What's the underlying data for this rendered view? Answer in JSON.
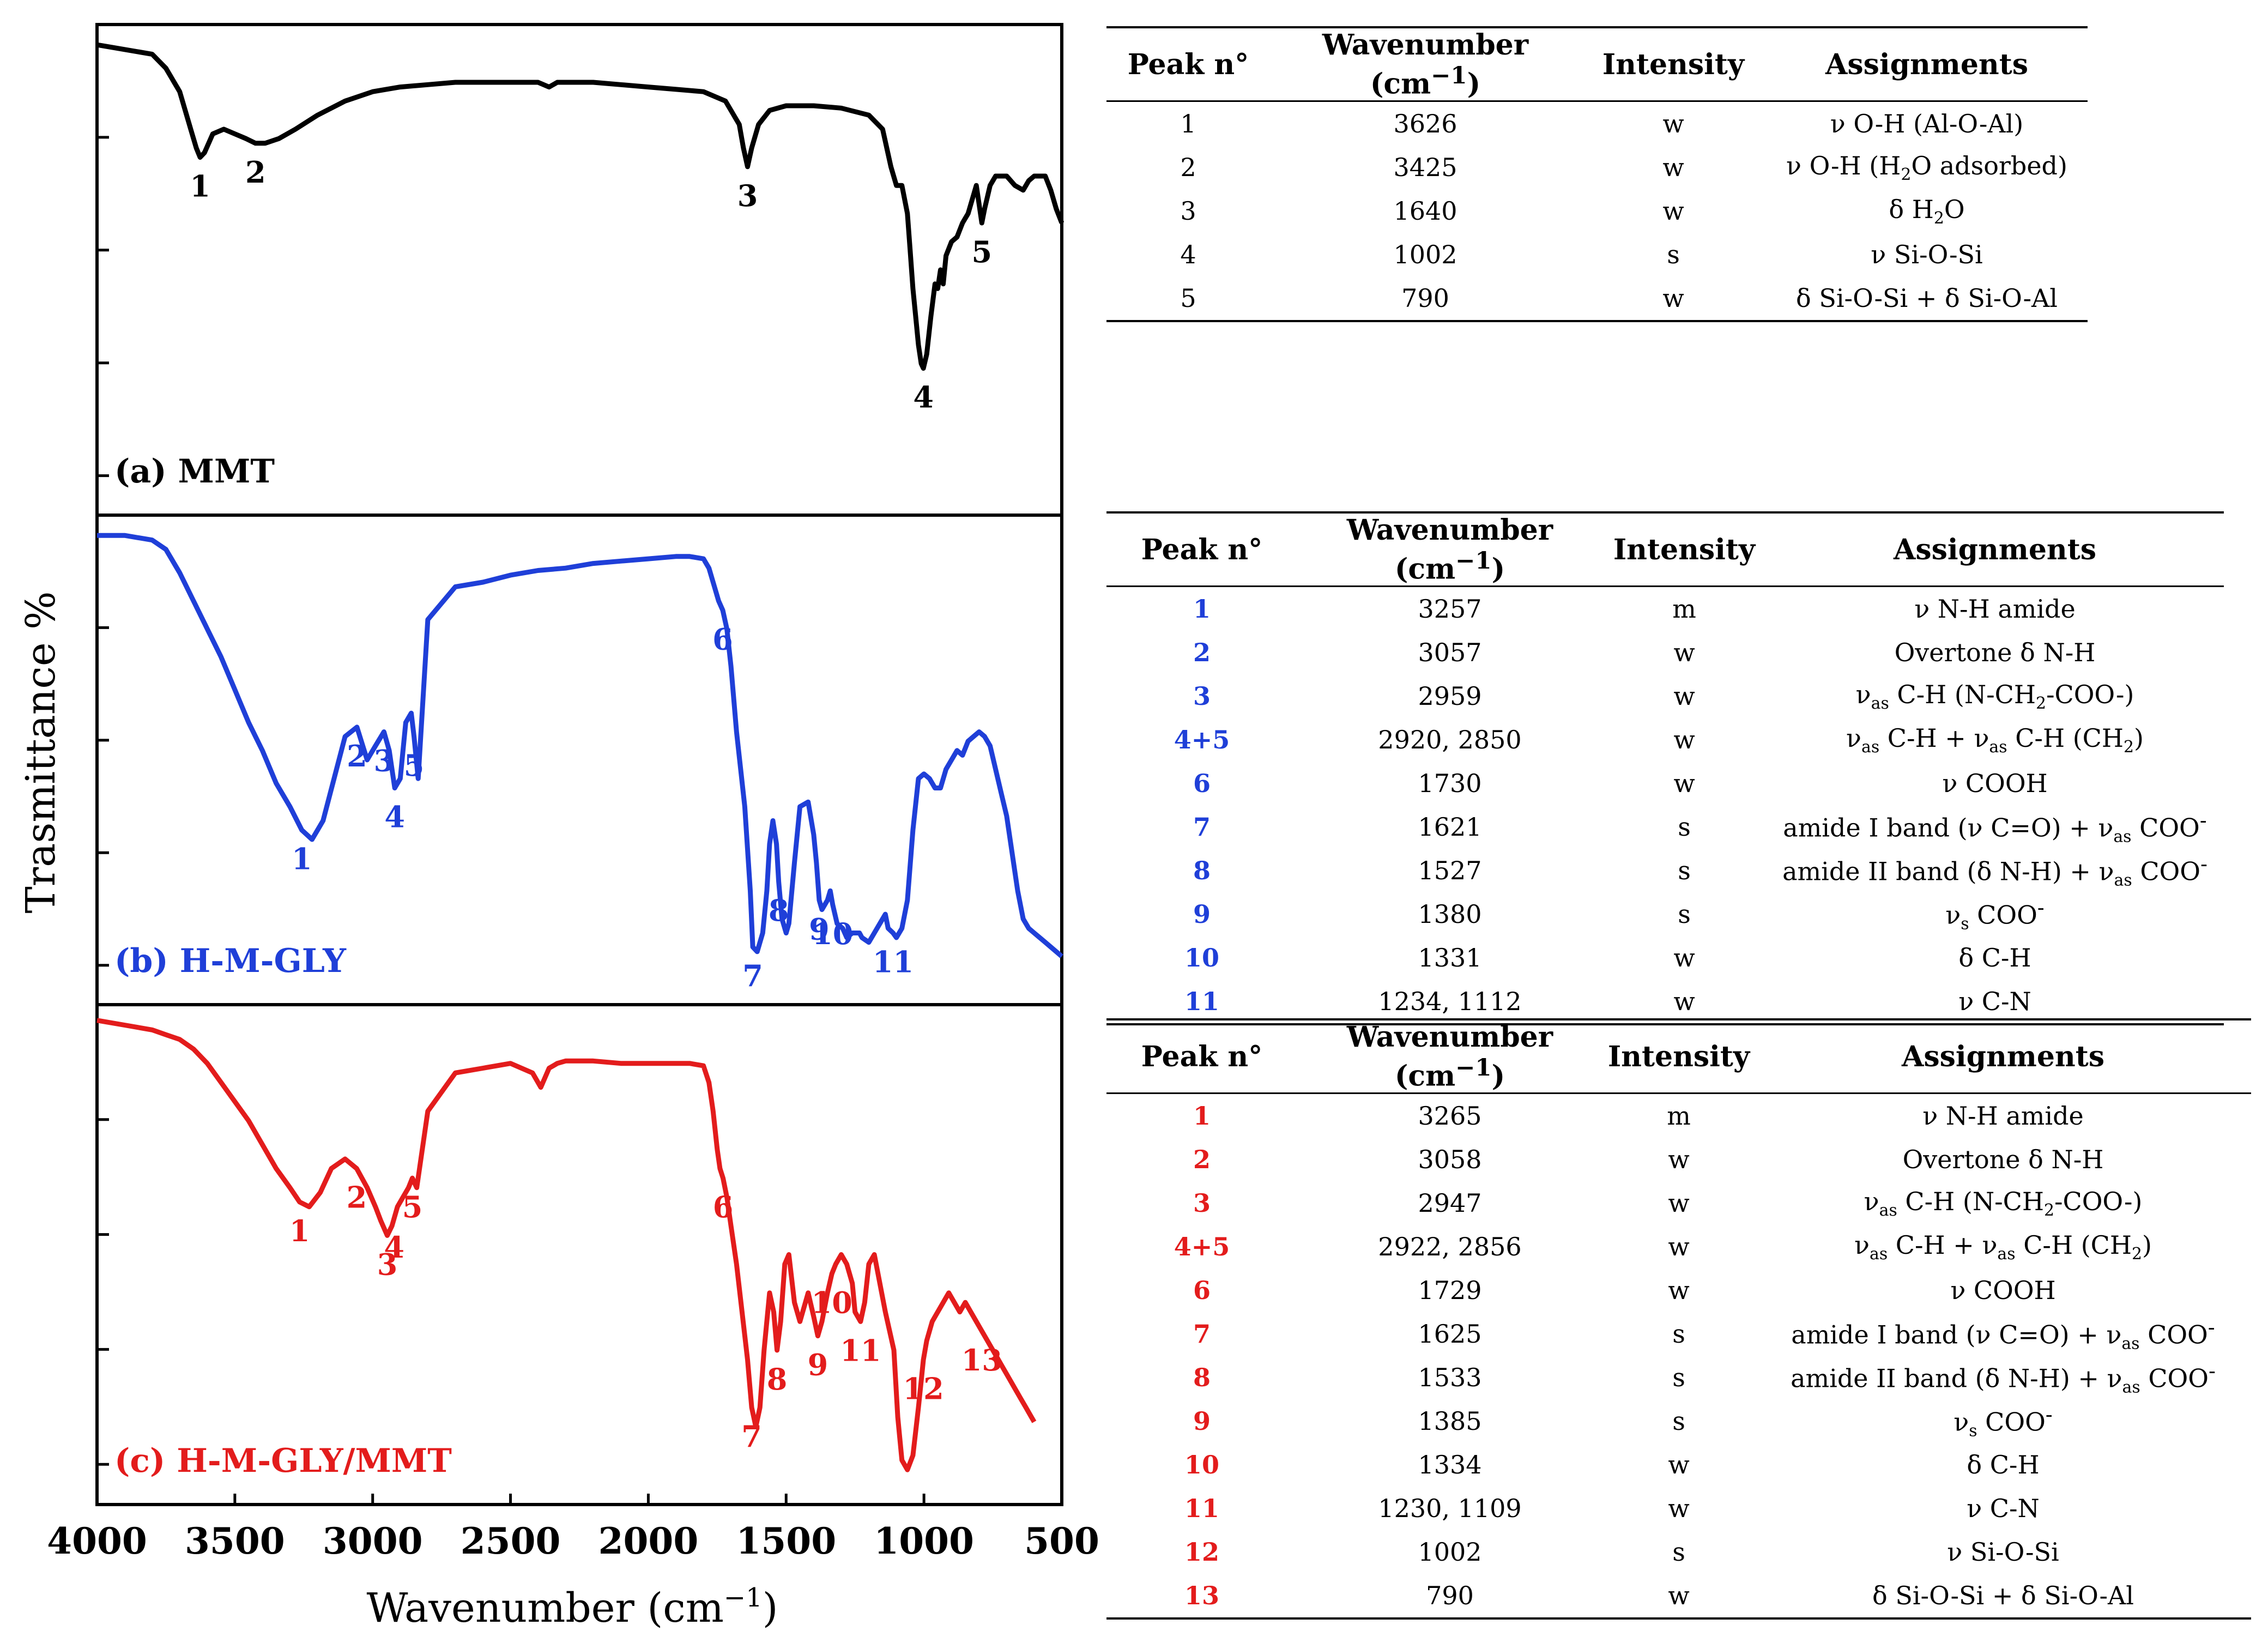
{
  "chart_data": {
    "type": "line",
    "ylabel": "Trasmittance %",
    "xlabel": "Wavenumber (cm−1)",
    "xlim": [
      4000,
      500
    ],
    "xticks": [
      "4000",
      "3500",
      "3000",
      "2500",
      "2000",
      "1500",
      "1000",
      "500"
    ],
    "panels": [
      {
        "label": "(a) MMT",
        "color": "#000000",
        "x": [
          4000,
          3900,
          3800,
          3750,
          3700,
          3660,
          3640,
          3626,
          3610,
          3580,
          3540,
          3500,
          3460,
          3425,
          3390,
          3340,
          3280,
          3200,
          3100,
          3000,
          2900,
          2800,
          2700,
          2600,
          2500,
          2400,
          2360,
          2330,
          2300,
          2200,
          2100,
          2000,
          1900,
          1800,
          1720,
          1670,
          1655,
          1640,
          1625,
          1600,
          1560,
          1500,
          1400,
          1300,
          1200,
          1150,
          1120,
          1100,
          1080,
          1060,
          1050,
          1040,
          1030,
          1020,
          1010,
          1002,
          990,
          975,
          960,
          950,
          940,
          930,
          920,
          900,
          880,
          860,
          840,
          820,
          810,
          800,
          790,
          780,
          760,
          740,
          700,
          670,
          640,
          620,
          600,
          580,
          560,
          540,
          520,
          500
        ],
        "y": [
          98,
          97,
          96,
          93,
          88,
          80,
          76,
          74,
          75,
          79,
          80,
          79,
          78,
          77,
          77,
          78,
          80,
          83,
          86,
          88,
          89,
          89.5,
          90,
          90,
          90,
          90,
          89,
          90,
          90,
          90,
          89.5,
          89,
          88.5,
          88,
          86,
          81,
          76,
          72,
          76,
          81,
          84,
          85,
          85,
          84.5,
          83,
          80,
          72,
          68,
          68,
          62,
          54,
          46,
          40,
          34,
          30,
          29,
          32,
          40,
          47,
          46,
          50,
          47,
          53,
          56,
          57,
          60,
          62,
          66,
          68,
          64,
          60,
          63,
          68,
          70,
          70,
          68,
          67,
          69,
          70,
          70,
          70,
          67,
          63,
          60
        ]
      },
      {
        "label": "(b) H-M-GLY",
        "color": "#1f3fd8",
        "x": [
          4000,
          3900,
          3800,
          3750,
          3700,
          3650,
          3600,
          3550,
          3500,
          3450,
          3400,
          3350,
          3300,
          3257,
          3220,
          3180,
          3140,
          3100,
          3057,
          3020,
          2990,
          2959,
          2940,
          2920,
          2900,
          2880,
          2860,
          2850,
          2835,
          2800,
          2700,
          2600,
          2500,
          2400,
          2300,
          2200,
          2100,
          2000,
          1900,
          1850,
          1800,
          1780,
          1760,
          1745,
          1730,
          1715,
          1700,
          1680,
          1650,
          1630,
          1621,
          1605,
          1585,
          1570,
          1560,
          1548,
          1535,
          1527,
          1515,
          1500,
          1490,
          1470,
          1450,
          1420,
          1400,
          1390,
          1380,
          1370,
          1350,
          1340,
          1331,
          1315,
          1295,
          1280,
          1260,
          1240,
          1234,
          1225,
          1200,
          1180,
          1160,
          1140,
          1130,
          1112,
          1100,
          1080,
          1060,
          1040,
          1020,
          1000,
          980,
          960,
          940,
          920,
          900,
          880,
          860,
          840,
          820,
          800,
          780,
          760,
          740,
          720,
          700,
          680,
          660,
          640,
          620,
          600,
          580,
          560,
          540,
          520,
          500
        ],
        "y": [
          98,
          98,
          97,
          95,
          90,
          84,
          78,
          72,
          65,
          58,
          52,
          45,
          40,
          35,
          33,
          37,
          46,
          55,
          57,
          50,
          53,
          56,
          52,
          44,
          46,
          58,
          60,
          55,
          46,
          80,
          87,
          88,
          89.5,
          90.5,
          91,
          92,
          92.5,
          93,
          93.5,
          93.5,
          93,
          91,
          87,
          84,
          82,
          78,
          70,
          56,
          40,
          22,
          10,
          9,
          13,
          22,
          32,
          37,
          32,
          24,
          16,
          13,
          15,
          28,
          40,
          41,
          34,
          28,
          20,
          18,
          20,
          22,
          19,
          15,
          14,
          12,
          13,
          13,
          13,
          12,
          11,
          13,
          15,
          17,
          14,
          13,
          12,
          14,
          20,
          35,
          46,
          47,
          46,
          44,
          44,
          48,
          50,
          52,
          51,
          54,
          55,
          56,
          55,
          53,
          48,
          43,
          38,
          30,
          22,
          16,
          14,
          13,
          12,
          11,
          10,
          9,
          8
        ]
      },
      {
        "label": "(c) H-M-GLY/MMT",
        "color": "#e31c1c",
        "x": [
          4000,
          3900,
          3800,
          3750,
          3700,
          3650,
          3600,
          3550,
          3500,
          3450,
          3400,
          3350,
          3300,
          3265,
          3230,
          3190,
          3150,
          3100,
          3058,
          3020,
          2990,
          2970,
          2947,
          2930,
          2910,
          2890,
          2870,
          2856,
          2840,
          2800,
          2700,
          2600,
          2500,
          2420,
          2390,
          2360,
          2330,
          2300,
          2200,
          2100,
          2000,
          1900,
          1850,
          1800,
          1780,
          1765,
          1750,
          1740,
          1729,
          1715,
          1700,
          1680,
          1660,
          1640,
          1625,
          1610,
          1595,
          1580,
          1560,
          1545,
          1533,
          1520,
          1505,
          1490,
          1470,
          1450,
          1420,
          1400,
          1385,
          1370,
          1350,
          1334,
          1320,
          1300,
          1280,
          1260,
          1250,
          1230,
          1215,
          1200,
          1180,
          1160,
          1140,
          1109,
          1095,
          1080,
          1060,
          1040,
          1020,
          1002,
          990,
          970,
          950,
          930,
          910,
          890,
          870,
          850,
          830,
          810,
          790,
          770,
          750,
          730,
          710,
          690,
          670,
          650,
          630,
          620,
          610,
          600
        ],
        "y": [
          99,
          98,
          97,
          96,
          95,
          93,
          90,
          86,
          82,
          78,
          73,
          68,
          64,
          61,
          60,
          63,
          68,
          70,
          68,
          64,
          60,
          57,
          54,
          56,
          60,
          62,
          64,
          66,
          64,
          80,
          88,
          89,
          90,
          88,
          85,
          89,
          90,
          90.5,
          90.5,
          90,
          90,
          90,
          90,
          89.5,
          86,
          80,
          72,
          68,
          66,
          62,
          56,
          48,
          38,
          28,
          18,
          14,
          18,
          30,
          42,
          38,
          30,
          36,
          48,
          50,
          40,
          36,
          42,
          37,
          33,
          36,
          42,
          46,
          48,
          50,
          48,
          44,
          38,
          36,
          40,
          48,
          50,
          44,
          38,
          30,
          16,
          7,
          5,
          8,
          18,
          28,
          32,
          36,
          38,
          40,
          42,
          40,
          38,
          40,
          38,
          36,
          34,
          32,
          30,
          28,
          26,
          24,
          22,
          20,
          18,
          17,
          16,
          15
        ]
      }
    ],
    "peak_labels": [
      [
        {
          "n": "1",
          "x": 3626
        },
        {
          "n": "2",
          "x": 3425
        },
        {
          "n": "3",
          "x": 1640
        },
        {
          "n": "4",
          "x": 1002
        },
        {
          "n": "5",
          "x": 790
        }
      ],
      [
        {
          "n": "1",
          "x": 3257
        },
        {
          "n": "2",
          "x": 3057
        },
        {
          "n": "3",
          "x": 2959
        },
        {
          "n": "4",
          "x": 2920
        },
        {
          "n": "5",
          "x": 2850
        },
        {
          "n": "6",
          "x": 1730
        },
        {
          "n": "7",
          "x": 1621
        },
        {
          "n": "8",
          "x": 1527
        },
        {
          "n": "9",
          "x": 1380
        },
        {
          "n": "10",
          "x": 1331
        },
        {
          "n": "11",
          "x": 1112
        }
      ],
      [
        {
          "n": "1",
          "x": 3265
        },
        {
          "n": "2",
          "x": 3058
        },
        {
          "n": "3",
          "x": 2947
        },
        {
          "n": "4",
          "x": 2922
        },
        {
          "n": "5",
          "x": 2856
        },
        {
          "n": "6",
          "x": 1729
        },
        {
          "n": "7",
          "x": 1625
        },
        {
          "n": "8",
          "x": 1533
        },
        {
          "n": "9",
          "x": 1385
        },
        {
          "n": "10",
          "x": 1334
        },
        {
          "n": "11",
          "x": 1230
        },
        {
          "n": "12",
          "x": 1002
        },
        {
          "n": "13",
          "x": 790
        }
      ]
    ]
  },
  "tables": {
    "headers": [
      "Peak n°",
      "Wavenumber (cm−1)",
      "Intensity",
      "Assignments"
    ],
    "mmt": [
      {
        "peak": "1",
        "wn": "3626",
        "int": "w",
        "asg": "ν O-H (Al-O-Al)"
      },
      {
        "peak": "2",
        "wn": "3425",
        "int": "w",
        "asg": "ν O-H (H<sub>2</sub>O adsorbed)"
      },
      {
        "peak": "3",
        "wn": "1640",
        "int": "w",
        "asg": "δ H<sub>2</sub>O"
      },
      {
        "peak": "4",
        "wn": "1002",
        "int": "s",
        "asg": "ν Si-O-Si"
      },
      {
        "peak": "5",
        "wn": "790",
        "int": "w",
        "asg": "δ Si-O-Si + δ Si-O-Al"
      }
    ],
    "hmgly": [
      {
        "peak": "1",
        "wn": "3257",
        "int": "m",
        "asg": "ν N-H amide"
      },
      {
        "peak": "2",
        "wn": "3057",
        "int": "w",
        "asg": "Overtone δ N-H"
      },
      {
        "peak": "3",
        "wn": "2959",
        "int": "w",
        "asg": "ν<sub>as</sub> C-H (N-CH<sub>2</sub>-COO-)"
      },
      {
        "peak": "4+5",
        "wn": "2920, 2850",
        "int": "w",
        "asg": "ν<sub>as</sub> C-H + ν<sub>as</sub> C-H (CH<sub>2</sub>)"
      },
      {
        "peak": "6",
        "wn": "1730",
        "int": "w",
        "asg": "ν COOH"
      },
      {
        "peak": "7",
        "wn": "1621",
        "int": "s",
        "asg": "amide I band (ν C=O) + ν<sub>as</sub> COO<sup>-</sup>"
      },
      {
        "peak": "8",
        "wn": "1527",
        "int": "s",
        "asg": "amide II band (δ N-H) + ν<sub>as</sub> COO<sup>-</sup>"
      },
      {
        "peak": "9",
        "wn": "1380",
        "int": "s",
        "asg": "ν<sub>s</sub> COO<sup>-</sup>"
      },
      {
        "peak": "10",
        "wn": "1331",
        "int": "w",
        "asg": "δ C-H"
      },
      {
        "peak": "11",
        "wn": "1234, 1112",
        "int": "w",
        "asg": "ν C-N"
      }
    ],
    "hmglymmt": [
      {
        "peak": "1",
        "wn": "3265",
        "int": "m",
        "asg": "ν N-H amide"
      },
      {
        "peak": "2",
        "wn": "3058",
        "int": "w",
        "asg": "Overtone δ N-H"
      },
      {
        "peak": "3",
        "wn": "2947",
        "int": "w",
        "asg": "ν<sub>as</sub> C-H (N-CH<sub>2</sub>-COO-)"
      },
      {
        "peak": "4+5",
        "wn": "2922, 2856",
        "int": "w",
        "asg": "ν<sub>as</sub> C-H + ν<sub>as</sub> C-H (CH<sub>2</sub>)"
      },
      {
        "peak": "6",
        "wn": "1729",
        "int": "w",
        "asg": "ν COOH"
      },
      {
        "peak": "7",
        "wn": "1625",
        "int": "s",
        "asg": "amide I band (ν C=O) + ν<sub>as</sub> COO<sup>-</sup>"
      },
      {
        "peak": "8",
        "wn": "1533",
        "int": "s",
        "asg": "amide II band (δ N-H) + ν<sub>as</sub> COO<sup>-</sup>"
      },
      {
        "peak": "9",
        "wn": "1385",
        "int": "s",
        "asg": "ν<sub>s</sub> COO<sup>-</sup>"
      },
      {
        "peak": "10",
        "wn": "1334",
        "int": "w",
        "asg": "δ C-H"
      },
      {
        "peak": "11",
        "wn": "1230, 1109",
        "int": "w",
        "asg": "ν C-N"
      },
      {
        "peak": "12",
        "wn": "1002",
        "int": "s",
        "asg": "ν Si-O-Si"
      },
      {
        "peak": "13",
        "wn": "790",
        "int": "w",
        "asg": "δ Si-O-Si + δ Si-O-Al"
      }
    ]
  }
}
